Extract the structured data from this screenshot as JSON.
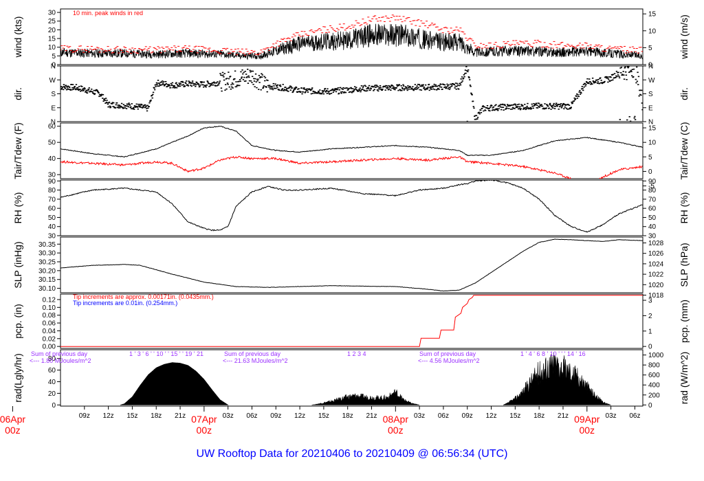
{
  "title": "UW Rooftop Data for 20210406  to  20210409 @ 06:56:34  (UTC)",
  "colors": {
    "main_line": "#000000",
    "peak_wind": "#ff0000",
    "dewpoint": "#ff0000",
    "tip_small": "#ff0000",
    "tip_large": "#0000ff",
    "radiation_notes": "#9b30ff",
    "day_labels": "#ff0000",
    "title": "#0000ff"
  },
  "x_axis": {
    "start_hour": 6,
    "end_hour": 79,
    "tick_labels": [
      "09z",
      "12z",
      "15z",
      "18z",
      "21z",
      "03z",
      "06z",
      "09z",
      "12z",
      "15z",
      "18z",
      "21z",
      "03z",
      "06z",
      "09z",
      "12z",
      "15z",
      "18z",
      "21z",
      "03z",
      "06z"
    ],
    "tick_hours": [
      9,
      12,
      15,
      18,
      21,
      27,
      30,
      33,
      36,
      39,
      42,
      45,
      51,
      54,
      57,
      60,
      63,
      66,
      69,
      75,
      78
    ],
    "day_labels": [
      {
        "line1": "06Apr",
        "line2": "00z",
        "hour": 0
      },
      {
        "line1": "07Apr",
        "line2": "00z",
        "hour": 24
      },
      {
        "line1": "08Apr",
        "line2": "00z",
        "hour": 48
      },
      {
        "line1": "09Apr",
        "line2": "00z",
        "hour": 72
      }
    ]
  },
  "panels": {
    "wind": {
      "left_label": "wind (kts)",
      "right_label": "wind (m/s)",
      "left_ticks": [
        "0",
        "5",
        "10",
        "15",
        "20",
        "25",
        "30"
      ],
      "left_values": [
        0,
        5,
        10,
        15,
        20,
        25,
        30
      ],
      "right_ticks": [
        "0",
        "5",
        "10",
        "15"
      ],
      "right_values": [
        0,
        5,
        10,
        15
      ],
      "note": "10 min. peak winds in red"
    },
    "dir": {
      "left_label": "dir.",
      "right_label": "dir.",
      "left_ticks": [
        "N",
        "E",
        "S",
        "W",
        "N"
      ],
      "right_ticks": [
        "N",
        "E",
        "S",
        "W",
        "N"
      ],
      "values": [
        0,
        90,
        180,
        270,
        360
      ]
    },
    "temp": {
      "left_label": "Tair/Tdew (F)",
      "right_label": "Tair/Tdew (C)",
      "left_ticks": [
        "30",
        "40",
        "50",
        "60"
      ],
      "left_values": [
        30,
        40,
        50,
        60
      ],
      "right_ticks": [
        "-5",
        "0",
        "5",
        "10",
        "15"
      ],
      "right_values": [
        -5,
        0,
        5,
        10,
        15
      ]
    },
    "rh": {
      "left_label": "RH (%)",
      "right_label": "RH (%)",
      "ticks": [
        "30",
        "40",
        "50",
        "60",
        "70",
        "80",
        "90"
      ],
      "values": [
        30,
        40,
        50,
        60,
        70,
        80,
        90
      ]
    },
    "slp": {
      "left_label": "SLP (inHg)",
      "right_label": "SLP (hPa)",
      "left_ticks": [
        "30.10",
        "30.15",
        "30.20",
        "30.25",
        "30.30",
        "30.35"
      ],
      "left_values": [
        30.1,
        30.15,
        30.2,
        30.25,
        30.3,
        30.35
      ],
      "right_ticks": [
        "1018",
        "1020",
        "1022",
        "1024",
        "1026",
        "1028"
      ],
      "right_values": [
        1018,
        1020,
        1022,
        1024,
        1026,
        1028
      ]
    },
    "pcp": {
      "left_label": "pcp. (in)",
      "right_label": "pcp. (mm)",
      "left_ticks": [
        "0.00",
        "0.02",
        "0.04",
        "0.06",
        "0.08",
        "0.10",
        "0.12"
      ],
      "left_values": [
        0,
        0.02,
        0.04,
        0.06,
        0.08,
        0.1,
        0.12
      ],
      "right_ticks": [
        "0",
        "1",
        "2",
        "3"
      ],
      "right_values": [
        0,
        1,
        2,
        3
      ],
      "note1": "Tip increments are approx. 0.00171in. (0.0435mm.)",
      "note2": "Tip increments are 0.01in. (0.254mm.)"
    },
    "rad": {
      "left_label": "rad(Lgly/hr)",
      "right_label": "rad (W/m^2)",
      "left_ticks": [
        "0",
        "20",
        "40",
        "60",
        "80"
      ],
      "left_values": [
        0,
        20,
        40,
        60,
        80
      ],
      "right_ticks": [
        "0",
        "200",
        "400",
        "600",
        "800",
        "1000"
      ],
      "right_values": [
        0,
        200,
        400,
        600,
        800,
        1000
      ],
      "notes": [
        {
          "line1": "Sum of previous day",
          "line2": "<--- 1.80 MJoules/m^2"
        },
        {
          "line1": "Sum of previous day",
          "line2": "<--- 21.63 MJoules/m^2"
        },
        {
          "line1": "Sum of previous day",
          "line2": "<--- 4.56 MJoules/m^2"
        }
      ],
      "hour_marks": [
        {
          "text": "1 ' 3 ' 6 ' ' 10 ' ' 15 ' ' 19 ' 21"
        },
        {
          "text": "1        2        3        4"
        },
        {
          "text": "1 ' 4 ' 6 8 ' 10 ' ' ' 14 ' 16"
        }
      ]
    }
  },
  "chart_data": {
    "type": "line",
    "x_unit": "hours since 2021-04-06 00z",
    "series": [
      {
        "panel": "wind",
        "unit": "kts",
        "x": [
          6,
          10,
          14,
          18,
          22,
          26,
          29,
          31,
          33,
          36,
          39,
          42,
          45,
          48,
          50,
          52,
          54,
          56,
          58,
          60,
          63,
          66,
          69,
          72,
          75,
          79
        ],
        "values": [
          7,
          6.5,
          6.5,
          6,
          6.5,
          6,
          5,
          5,
          8,
          12,
          13,
          14,
          17,
          17,
          16,
          14,
          13,
          13,
          7,
          7.5,
          8,
          7.5,
          7,
          7.5,
          6.5,
          5
        ]
      },
      {
        "panel": "wind",
        "name": "10 min. peak winds",
        "unit": "kts",
        "x": [
          6,
          10,
          14,
          18,
          22,
          26,
          29,
          31,
          33,
          36,
          39,
          42,
          45,
          48,
          50,
          52,
          54,
          56,
          58,
          60,
          63,
          66,
          69,
          72,
          75,
          79
        ],
        "values": [
          9,
          9,
          8.5,
          8.5,
          9,
          8,
          7,
          7,
          12,
          17,
          20,
          22,
          26,
          27,
          25,
          23,
          20,
          20,
          11,
          11,
          12,
          12,
          11,
          11,
          9,
          8
        ]
      },
      {
        "panel": "dir",
        "unit": "deg",
        "x": [
          6,
          8,
          10,
          11,
          12,
          14,
          16,
          17,
          18,
          19,
          20,
          22,
          24,
          26,
          28,
          29,
          30,
          31,
          32,
          34,
          36,
          40,
          44,
          48,
          52,
          56,
          57,
          58,
          59,
          60,
          62,
          66,
          70,
          72,
          74,
          75,
          76,
          77,
          78,
          79
        ],
        "values": [
          225,
          220,
          195,
          180,
          110,
          105,
          95,
          85,
          250,
          245,
          235,
          245,
          240,
          255,
          275,
          290,
          300,
          260,
          230,
          220,
          200,
          195,
          215,
          220,
          222,
          230,
          355,
          20,
          85,
          90,
          95,
          100,
          100,
          260,
          265,
          280,
          320,
          330,
          350,
          120
        ]
      },
      {
        "panel": "temp",
        "name": "Tair",
        "unit": "F",
        "x": [
          6,
          10,
          14,
          18,
          22,
          24,
          26,
          28,
          30,
          33,
          36,
          40,
          44,
          48,
          52,
          56,
          57,
          60,
          64,
          68,
          72,
          76,
          79
        ],
        "values": [
          46,
          43,
          41,
          46,
          54,
          59,
          60,
          57,
          48,
          45,
          44,
          46,
          47,
          48,
          47,
          45,
          42,
          42,
          45,
          51,
          53,
          50,
          47
        ]
      },
      {
        "panel": "temp",
        "name": "Tdew",
        "unit": "F",
        "x": [
          6,
          10,
          14,
          18,
          20,
          22,
          24,
          26,
          28,
          30,
          33,
          36,
          40,
          44,
          48,
          52,
          56,
          57,
          60,
          64,
          68,
          72,
          76,
          79
        ],
        "values": [
          38,
          37,
          36,
          38,
          37,
          32,
          34,
          39,
          41,
          40,
          40,
          37,
          38,
          39,
          40,
          39,
          41,
          38,
          37,
          35,
          31,
          24,
          33,
          35
        ]
      },
      {
        "panel": "rh",
        "unit": "%",
        "x": [
          6,
          10,
          14,
          18,
          20,
          22,
          24,
          25,
          26,
          27,
          28,
          30,
          32,
          34,
          36,
          40,
          44,
          48,
          51,
          54,
          56,
          57,
          58,
          60,
          62,
          64,
          66,
          68,
          70,
          72,
          74,
          76,
          79
        ],
        "values": [
          72,
          80,
          82,
          78,
          65,
          45,
          38,
          36,
          36,
          40,
          62,
          78,
          84,
          80,
          80,
          82,
          76,
          74,
          80,
          82,
          86,
          87,
          90,
          91,
          88,
          82,
          70,
          52,
          40,
          34,
          42,
          54,
          64
        ]
      },
      {
        "panel": "slp",
        "unit": "inHg",
        "x": [
          6,
          10,
          14,
          16,
          20,
          24,
          28,
          32,
          36,
          40,
          44,
          48,
          52,
          54,
          56,
          58,
          60,
          62,
          64,
          66,
          68,
          70,
          72,
          74,
          76,
          79
        ],
        "values": [
          30.215,
          30.23,
          30.235,
          30.23,
          30.18,
          30.135,
          30.11,
          30.105,
          30.11,
          30.115,
          30.112,
          30.11,
          30.095,
          30.085,
          30.09,
          30.13,
          30.19,
          30.25,
          30.31,
          30.36,
          30.378,
          30.375,
          30.37,
          30.365,
          30.375,
          30.37
        ]
      },
      {
        "panel": "pcp",
        "unit": "in",
        "x": [
          6,
          51,
          51.2,
          53.5,
          53.7,
          55.3,
          55.5,
          56.2,
          56.4,
          57,
          57.2,
          57.6,
          57.8,
          79
        ],
        "values": [
          0,
          0,
          0.021,
          0.021,
          0.042,
          0.042,
          0.075,
          0.085,
          0.1,
          0.11,
          0.12,
          0.125,
          0.131,
          0.131
        ]
      },
      {
        "panel": "rad",
        "unit": "Lgly/hr",
        "x": [
          13.5,
          14,
          15,
          16,
          17,
          18,
          19,
          20,
          21,
          22,
          23,
          24,
          25,
          26,
          27
        ],
        "values": [
          0,
          2,
          14,
          34,
          52,
          64,
          70,
          73,
          72,
          68,
          58,
          44,
          26,
          9,
          0
        ]
      },
      {
        "panel": "rad",
        "unit": "Lgly/hr",
        "x": [
          37.5,
          38,
          39,
          40,
          41,
          42,
          43,
          44,
          45,
          46,
          47,
          48,
          49,
          50,
          51
        ],
        "values": [
          0,
          1,
          4,
          7,
          11,
          15,
          17,
          15,
          14,
          13,
          14,
          24,
          10,
          3,
          0
        ]
      },
      {
        "panel": "rad",
        "unit": "Lgly/hr",
        "x": [
          61.5,
          62,
          63,
          64,
          65,
          66,
          67,
          68,
          69,
          70,
          71,
          72,
          73,
          74,
          75
        ],
        "values": [
          0,
          3,
          12,
          25,
          45,
          62,
          72,
          78,
          70,
          62,
          52,
          35,
          18,
          5,
          0
        ]
      }
    ]
  }
}
